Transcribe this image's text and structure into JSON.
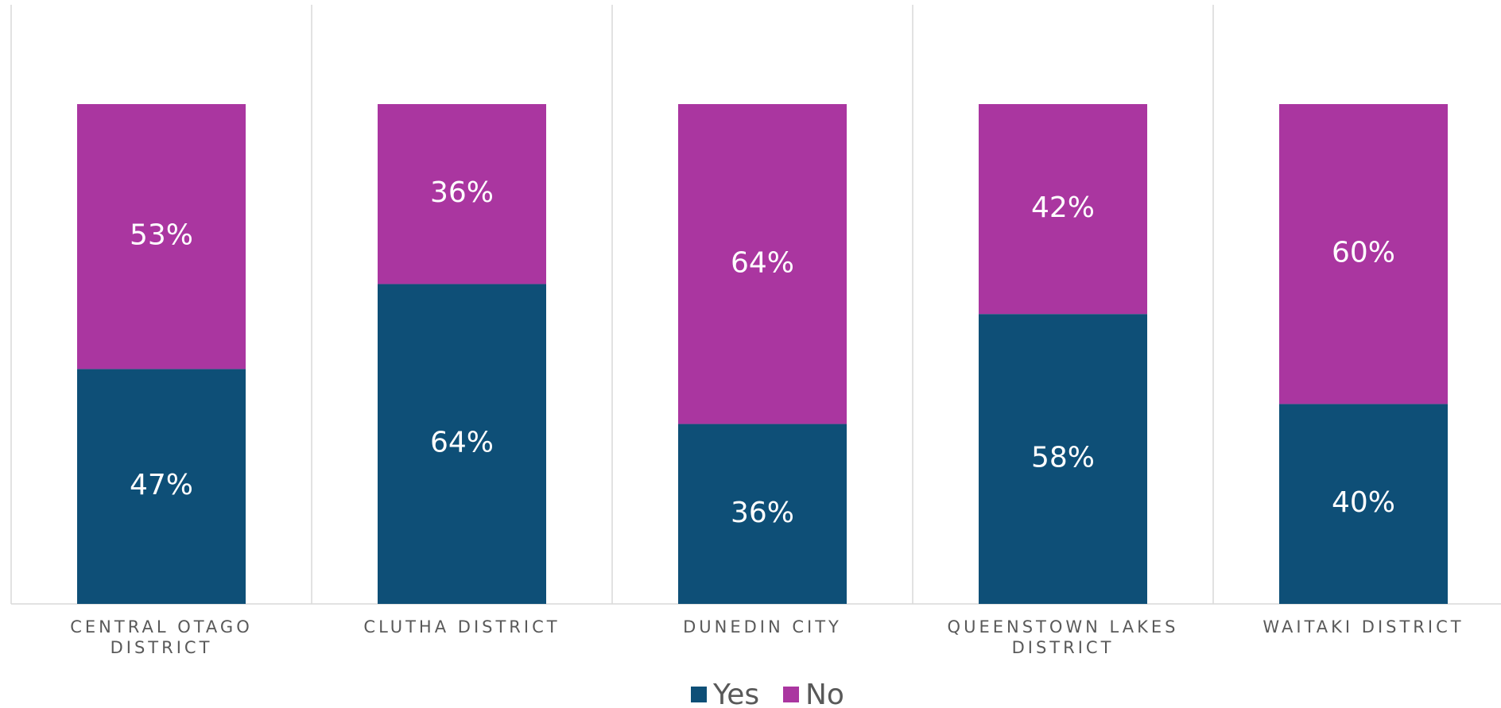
{
  "chart_data": {
    "type": "stacked_bar",
    "categories": [
      "CENTRAL OTAGO DISTRICT",
      "CLUTHA DISTRICT",
      "DUNEDIN CITY",
      "QUEENSTOWN LAKES DISTRICT",
      "WAITAKI DISTRICT"
    ],
    "series": [
      {
        "name": "Yes",
        "color": "#0e4f77",
        "values": [
          47,
          64,
          36,
          58,
          40
        ],
        "value_labels": [
          "47%",
          "64%",
          "36%",
          "58%",
          "40%"
        ]
      },
      {
        "name": "No",
        "color": "#aa36a0",
        "values": [
          53,
          36,
          64,
          42,
          60
        ],
        "value_labels": [
          "53%",
          "36%",
          "64%",
          "42%",
          "60%"
        ]
      }
    ],
    "ylim": [
      0,
      100
    ],
    "legend": "bottom"
  }
}
